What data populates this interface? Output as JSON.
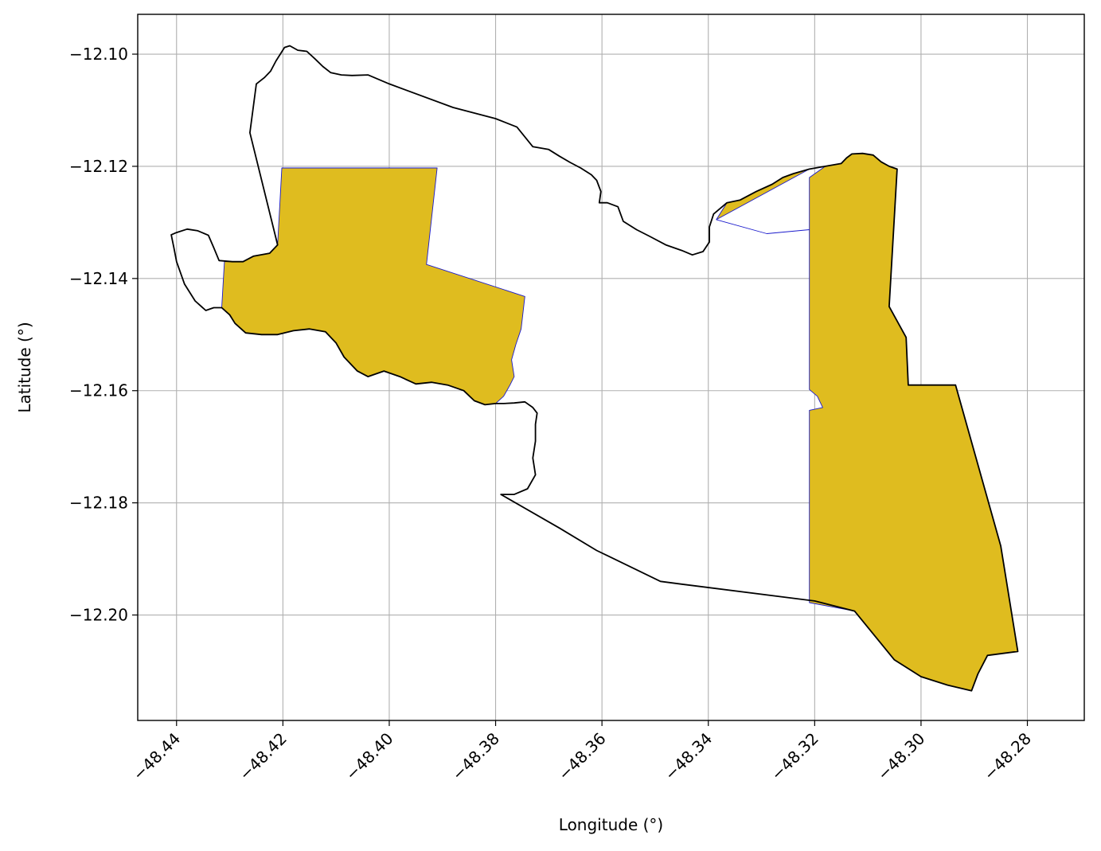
{
  "chart_data": {
    "type": "map",
    "xlabel": "Longitude (°)",
    "ylabel": "Latitude (°)",
    "xlim": [
      -48.4473,
      -48.2693
    ],
    "ylim": [
      -12.2188,
      -12.0929
    ],
    "x_ticks": [
      -48.44,
      -48.42,
      -48.4,
      -48.38,
      -48.36,
      -48.34,
      -48.32,
      -48.3,
      -48.28
    ],
    "x_tick_labels": [
      "−48.44",
      "−48.42",
      "−48.40",
      "−48.38",
      "−48.36",
      "−48.34",
      "−48.32",
      "−48.30",
      "−48.28"
    ],
    "y_ticks": [
      -12.1,
      -12.12,
      -12.14,
      -12.16,
      -12.18,
      -12.2
    ],
    "y_tick_labels": [
      "−12.10",
      "−12.12",
      "−12.14",
      "−12.16",
      "−12.18",
      "−12.20"
    ],
    "grid": true,
    "colors": {
      "fill": "#dfbc1f",
      "inner_edge": "#1a1acc",
      "outline": "#000000",
      "grid": "#b0b0b0"
    },
    "outline": [
      [
        -48.4262,
        -12.114
      ],
      [
        -48.425,
        -12.1053
      ],
      [
        -48.4235,
        -12.1042
      ],
      [
        -48.4223,
        -12.103
      ],
      [
        -48.4213,
        -12.1012
      ],
      [
        -48.4197,
        -12.0988
      ],
      [
        -48.4187,
        -12.0985
      ],
      [
        -48.4172,
        -12.0993
      ],
      [
        -48.4155,
        -12.0995
      ],
      [
        -48.414,
        -12.1008
      ],
      [
        -48.4125,
        -12.1022
      ],
      [
        -48.411,
        -12.1033
      ],
      [
        -48.409,
        -12.1037
      ],
      [
        -48.407,
        -12.1038
      ],
      [
        -48.404,
        -12.1037
      ],
      [
        -48.4,
        -12.1053
      ],
      [
        -48.388,
        -12.1095
      ],
      [
        -48.38,
        -12.1115
      ],
      [
        -48.376,
        -12.113
      ],
      [
        -48.373,
        -12.1165
      ],
      [
        -48.37,
        -12.117
      ],
      [
        -48.368,
        -12.1182
      ],
      [
        -48.366,
        -12.1193
      ],
      [
        -48.364,
        -12.1203
      ],
      [
        -48.362,
        -12.1215
      ],
      [
        -48.361,
        -12.1225
      ],
      [
        -48.3602,
        -12.1245
      ],
      [
        -48.3605,
        -12.1265
      ],
      [
        -48.359,
        -12.1265
      ],
      [
        -48.357,
        -12.1272
      ],
      [
        -48.356,
        -12.1298
      ],
      [
        -48.3535,
        -12.1313
      ],
      [
        -48.351,
        -12.1325
      ],
      [
        -48.348,
        -12.134
      ],
      [
        -48.345,
        -12.135
      ],
      [
        -48.343,
        -12.1358
      ],
      [
        -48.341,
        -12.1352
      ],
      [
        -48.3398,
        -12.1335
      ],
      [
        -48.3398,
        -12.1308
      ],
      [
        -48.339,
        -12.1285
      ],
      [
        -48.3365,
        -12.1265
      ],
      [
        -48.334,
        -12.126
      ],
      [
        -48.331,
        -12.1245
      ],
      [
        -48.328,
        -12.1232
      ],
      [
        -48.326,
        -12.122
      ],
      [
        -48.324,
        -12.1213
      ],
      [
        -48.321,
        -12.1205
      ],
      [
        -48.318,
        -12.12
      ],
      [
        -48.315,
        -12.1195
      ],
      [
        -48.314,
        -12.1185
      ],
      [
        -48.313,
        -12.1178
      ],
      [
        -48.311,
        -12.1177
      ],
      [
        -48.309,
        -12.118
      ],
      [
        -48.3075,
        -12.1192
      ],
      [
        -48.306,
        -12.12
      ],
      [
        -48.3045,
        -12.1205
      ],
      [
        -48.306,
        -12.145
      ],
      [
        -48.3028,
        -12.1505
      ],
      [
        -48.3024,
        -12.159
      ],
      [
        -48.2985,
        -12.159
      ],
      [
        -48.2935,
        -12.159
      ],
      [
        -48.285,
        -12.1877
      ],
      [
        -48.2818,
        -12.2065
      ],
      [
        -48.2875,
        -12.2072
      ],
      [
        -48.2893,
        -12.2105
      ],
      [
        -48.2905,
        -12.2135
      ],
      [
        -48.295,
        -12.2125
      ],
      [
        -48.3,
        -12.211
      ],
      [
        -48.305,
        -12.208
      ],
      [
        -48.3125,
        -12.1993
      ],
      [
        -48.32,
        -12.1975
      ],
      [
        -48.345,
        -12.1945
      ],
      [
        -48.349,
        -12.194
      ],
      [
        -48.361,
        -12.1885
      ],
      [
        -48.368,
        -12.1845
      ],
      [
        -48.379,
        -12.1785
      ],
      [
        -48.3765,
        -12.1785
      ],
      [
        -48.374,
        -12.1775
      ],
      [
        -48.3725,
        -12.175
      ],
      [
        -48.373,
        -12.172
      ],
      [
        -48.3725,
        -12.169
      ],
      [
        -48.3725,
        -12.166
      ],
      [
        -48.3722,
        -12.164
      ],
      [
        -48.373,
        -12.163
      ],
      [
        -48.3745,
        -12.162
      ],
      [
        -48.3765,
        -12.1622
      ],
      [
        -48.3785,
        -12.1623
      ],
      [
        -48.38,
        -12.1623
      ],
      [
        -48.382,
        -12.1625
      ],
      [
        -48.384,
        -12.1618
      ],
      [
        -48.386,
        -12.16
      ],
      [
        -48.389,
        -12.159
      ],
      [
        -48.392,
        -12.1585
      ],
      [
        -48.395,
        -12.1588
      ],
      [
        -48.398,
        -12.1575
      ],
      [
        -48.401,
        -12.1565
      ],
      [
        -48.404,
        -12.1575
      ],
      [
        -48.406,
        -12.1565
      ],
      [
        -48.4085,
        -12.154
      ],
      [
        -48.41,
        -12.1515
      ],
      [
        -48.412,
        -12.1495
      ],
      [
        -48.415,
        -12.149
      ],
      [
        -48.418,
        -12.1493
      ],
      [
        -48.421,
        -12.15
      ],
      [
        -48.424,
        -12.15
      ],
      [
        -48.427,
        -12.1497
      ],
      [
        -48.429,
        -12.148
      ],
      [
        -48.43,
        -12.1465
      ],
      [
        -48.4315,
        -12.1452
      ],
      [
        -48.433,
        -12.1452
      ],
      [
        -48.4345,
        -12.1457
      ],
      [
        -48.4365,
        -12.144
      ],
      [
        -48.4385,
        -12.141
      ],
      [
        -48.44,
        -12.137
      ],
      [
        -48.4405,
        -12.1345
      ],
      [
        -48.441,
        -12.1322
      ],
      [
        -48.44,
        -12.1318
      ],
      [
        -48.438,
        -12.1312
      ],
      [
        -48.436,
        -12.1315
      ],
      [
        -48.434,
        -12.1323
      ],
      [
        -48.433,
        -12.1345
      ],
      [
        -48.432,
        -12.1368
      ],
      [
        -48.4295,
        -12.137
      ],
      [
        -48.4275,
        -12.137
      ],
      [
        -48.4255,
        -12.136
      ],
      [
        -48.4225,
        -12.1355
      ],
      [
        -48.421,
        -12.134
      ],
      [
        -48.4262,
        -12.114
      ]
    ],
    "filled_polygons": [
      {
        "region": "west",
        "points": [
          [
            -48.4202,
            -12.1203
          ],
          [
            -48.391,
            -12.1203
          ],
          [
            -48.393,
            -12.1375
          ],
          [
            -48.3745,
            -12.1432
          ],
          [
            -48.3752,
            -12.149
          ],
          [
            -48.3762,
            -12.1518
          ],
          [
            -48.377,
            -12.1545
          ],
          [
            -48.3765,
            -12.1575
          ],
          [
            -48.3773,
            -12.159
          ],
          [
            -48.3785,
            -12.161
          ],
          [
            -48.38,
            -12.1623
          ],
          [
            -48.382,
            -12.1625
          ],
          [
            -48.384,
            -12.1618
          ],
          [
            -48.386,
            -12.16
          ],
          [
            -48.389,
            -12.159
          ],
          [
            -48.392,
            -12.1585
          ],
          [
            -48.395,
            -12.1588
          ],
          [
            -48.398,
            -12.1575
          ],
          [
            -48.401,
            -12.1565
          ],
          [
            -48.404,
            -12.1575
          ],
          [
            -48.406,
            -12.1565
          ],
          [
            -48.4085,
            -12.154
          ],
          [
            -48.41,
            -12.1515
          ],
          [
            -48.412,
            -12.1495
          ],
          [
            -48.415,
            -12.149
          ],
          [
            -48.418,
            -12.1493
          ],
          [
            -48.421,
            -12.15
          ],
          [
            -48.424,
            -12.15
          ],
          [
            -48.427,
            -12.1497
          ],
          [
            -48.429,
            -12.148
          ],
          [
            -48.43,
            -12.1465
          ],
          [
            -48.4315,
            -12.1452
          ],
          [
            -48.431,
            -12.137
          ],
          [
            -48.4295,
            -12.137
          ],
          [
            -48.4275,
            -12.137
          ],
          [
            -48.4255,
            -12.136
          ],
          [
            -48.4225,
            -12.1355
          ],
          [
            -48.421,
            -12.134
          ]
        ]
      },
      {
        "region": "east",
        "points": [
          [
            -48.3385,
            -12.1295
          ],
          [
            -48.329,
            -12.132
          ],
          [
            -48.321,
            -12.1313
          ],
          [
            -48.321,
            -12.122
          ],
          [
            -48.318,
            -12.12
          ],
          [
            -48.315,
            -12.1195
          ],
          [
            -48.314,
            -12.1185
          ],
          [
            -48.313,
            -12.1178
          ],
          [
            -48.311,
            -12.1177
          ],
          [
            -48.309,
            -12.118
          ],
          [
            -48.3075,
            -12.1192
          ],
          [
            -48.306,
            -12.12
          ],
          [
            -48.3045,
            -12.1205
          ],
          [
            -48.306,
            -12.145
          ],
          [
            -48.3028,
            -12.1505
          ],
          [
            -48.3024,
            -12.159
          ],
          [
            -48.2935,
            -12.159
          ],
          [
            -48.285,
            -12.1877
          ],
          [
            -48.2818,
            -12.2065
          ],
          [
            -48.2875,
            -12.2072
          ],
          [
            -48.2893,
            -12.2105
          ],
          [
            -48.2905,
            -12.2135
          ],
          [
            -48.295,
            -12.2125
          ],
          [
            -48.3,
            -12.211
          ],
          [
            -48.305,
            -12.208
          ],
          [
            -48.3125,
            -12.1993
          ],
          [
            -48.321,
            -12.1978
          ],
          [
            -48.321,
            -12.1635
          ],
          [
            -48.3185,
            -12.163
          ],
          [
            -48.3195,
            -12.161
          ],
          [
            -48.321,
            -12.1598
          ],
          [
            -48.321,
            -12.1313
          ],
          [
            -48.329,
            -12.132
          ],
          [
            -48.3385,
            -12.1295
          ],
          [
            -48.3365,
            -12.1265
          ],
          [
            -48.334,
            -12.126
          ],
          [
            -48.331,
            -12.1245
          ],
          [
            -48.328,
            -12.1232
          ],
          [
            -48.326,
            -12.122
          ],
          [
            -48.324,
            -12.1213
          ],
          [
            -48.321,
            -12.1205
          ]
        ]
      }
    ]
  }
}
